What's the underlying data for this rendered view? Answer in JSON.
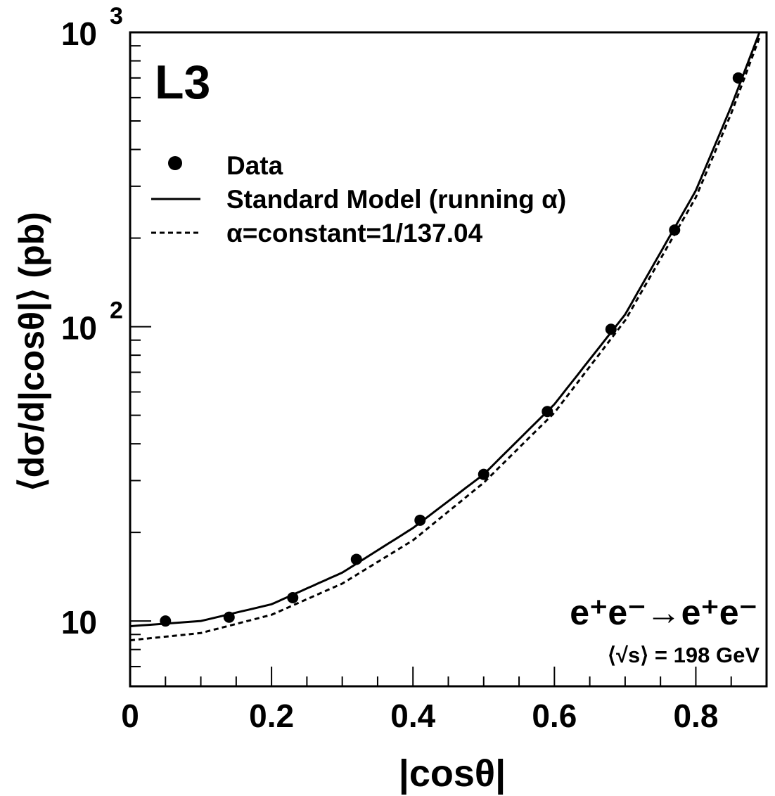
{
  "chart_data": {
    "type": "scatter",
    "experiment_label": "L3",
    "process_label": "e⁺e⁻→e⁺e⁻",
    "energy_label": "⟨√s⟩ = 198 GeV",
    "xlabel": "|cosθ|",
    "ylabel": "⟨dσ/d|cosθ|⟩ (pb)",
    "x_scale": "linear",
    "y_scale": "log",
    "xlim": [
      0,
      0.9
    ],
    "ylim": [
      6,
      1000
    ],
    "x_ticks": [
      {
        "value": 0,
        "label": "0"
      },
      {
        "value": 0.2,
        "label": "0.2"
      },
      {
        "value": 0.4,
        "label": "0.4"
      },
      {
        "value": 0.6,
        "label": "0.6"
      },
      {
        "value": 0.8,
        "label": "0.8"
      }
    ],
    "y_ticks": [
      {
        "value": 10,
        "base": "10",
        "exp": ""
      },
      {
        "value": 100,
        "base": "10",
        "exp": "2"
      },
      {
        "value": 1000,
        "base": "10",
        "exp": "3"
      }
    ],
    "legend": [
      {
        "label": "Data",
        "style": "marker"
      },
      {
        "label": "Standard Model (running α)",
        "style": "solid"
      },
      {
        "label": "α=constant=1/137.04",
        "style": "dashed"
      }
    ],
    "legend_position": "top-left",
    "grid": false,
    "series": [
      {
        "name": "Data",
        "style": "marker",
        "x": [
          0.05,
          0.14,
          0.23,
          0.32,
          0.41,
          0.5,
          0.59,
          0.68,
          0.77,
          0.86
        ],
        "y": [
          10.0,
          10.3,
          12.0,
          16.2,
          22.0,
          31.5,
          51.5,
          98.0,
          213,
          700
        ]
      },
      {
        "name": "Standard Model (running α)",
        "style": "solid",
        "x": [
          0,
          0.1,
          0.2,
          0.3,
          0.4,
          0.5,
          0.6,
          0.7,
          0.8,
          0.85,
          0.89
        ],
        "y": [
          9.6,
          10.0,
          11.4,
          14.6,
          20.7,
          31.5,
          54.5,
          110,
          290,
          560,
          1000
        ]
      },
      {
        "name": "α=constant=1/137.04",
        "style": "dashed",
        "x": [
          0,
          0.1,
          0.2,
          0.3,
          0.4,
          0.5,
          0.6,
          0.7,
          0.8,
          0.85,
          0.89
        ],
        "y": [
          8.6,
          9.1,
          10.5,
          13.4,
          18.8,
          29.5,
          51.0,
          105,
          275,
          530,
          960
        ]
      }
    ]
  }
}
